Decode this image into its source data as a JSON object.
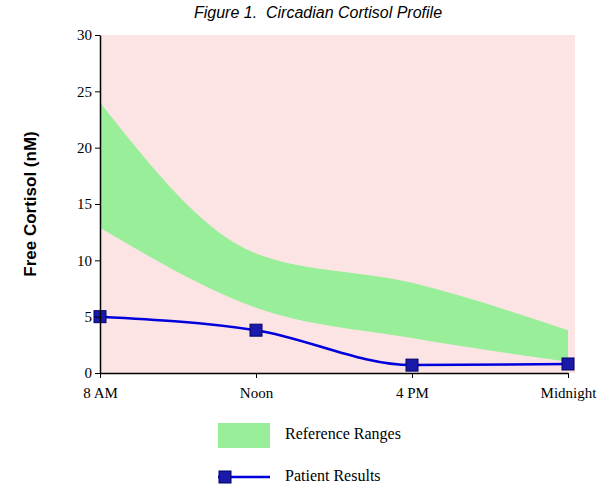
{
  "chart_data": {
    "type": "line",
    "title": "Figure 1.  Circadian Cortisol Profile",
    "y_label": "Free Cortisol (nM)",
    "categories": [
      "8 AM",
      "Noon",
      "4 PM",
      "Midnight"
    ],
    "series": [
      {
        "name": "Reference Ranges",
        "type": "area",
        "color": "#99ee99",
        "low": [
          12.9,
          5.8,
          3.1,
          1.0
        ],
        "high": [
          24,
          10.6,
          8.0,
          3.8
        ]
      },
      {
        "name": "Patient Results",
        "type": "line",
        "color": "#0000dd",
        "marker": "square",
        "values": [
          5.0,
          3.8,
          0.7,
          0.8
        ]
      }
    ],
    "ylim": [
      0,
      30
    ],
    "yticks": [
      0,
      5,
      10,
      15,
      20,
      25,
      30
    ],
    "grid": false,
    "legend": "bottom"
  }
}
